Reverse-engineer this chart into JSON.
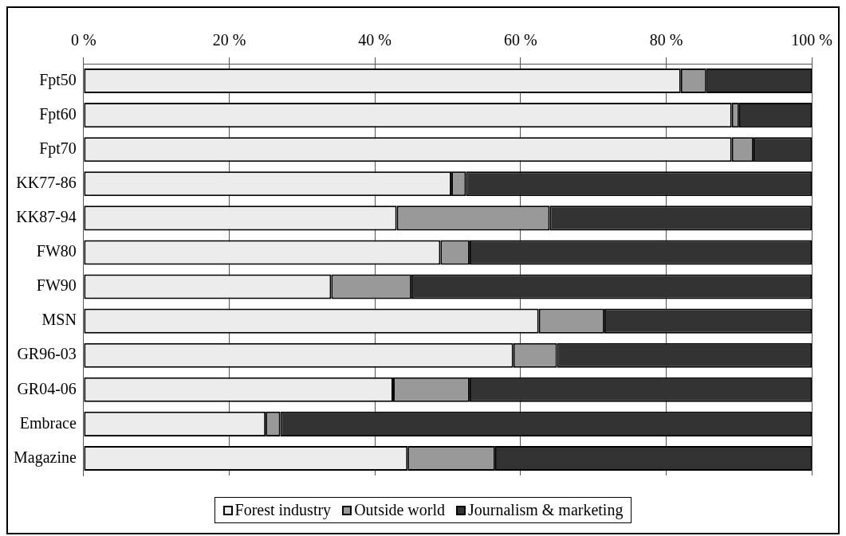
{
  "chart_data": {
    "type": "bar",
    "orientation": "horizontal",
    "stacked": true,
    "categories": [
      "Fpt50",
      "Fpt60",
      "Fpt70",
      "KK77-86",
      "KK87-94",
      "FW80",
      "FW90",
      "MSN",
      "GR96-03",
      "GR04-06",
      "Embrace",
      "Magazine"
    ],
    "series": [
      {
        "name": "Forest industry",
        "color": "#ececec",
        "values": [
          82,
          89,
          89,
          50.5,
          43,
          49,
          34,
          62.5,
          59,
          42.5,
          25,
          44.5
        ]
      },
      {
        "name": "Outside world",
        "color": "#999999",
        "values": [
          3.5,
          1,
          3,
          2,
          21,
          4,
          11,
          9,
          6,
          10.5,
          2,
          12
        ]
      },
      {
        "name": "Journalism & marketing",
        "color": "#333333",
        "values": [
          14.5,
          10,
          8,
          47.5,
          36,
          47,
          55,
          28.5,
          35,
          47,
          73,
          43.5
        ]
      }
    ],
    "xlim": [
      0,
      100
    ],
    "xticks": [
      {
        "value": 0,
        "label": "0 %"
      },
      {
        "value": 20,
        "label": "20 %"
      },
      {
        "value": 40,
        "label": "40 %"
      },
      {
        "value": 60,
        "label": "60 %"
      },
      {
        "value": 80,
        "label": "80 %"
      },
      {
        "value": 100,
        "label": "100 %"
      }
    ],
    "grid": "x",
    "legend": "bottom"
  }
}
